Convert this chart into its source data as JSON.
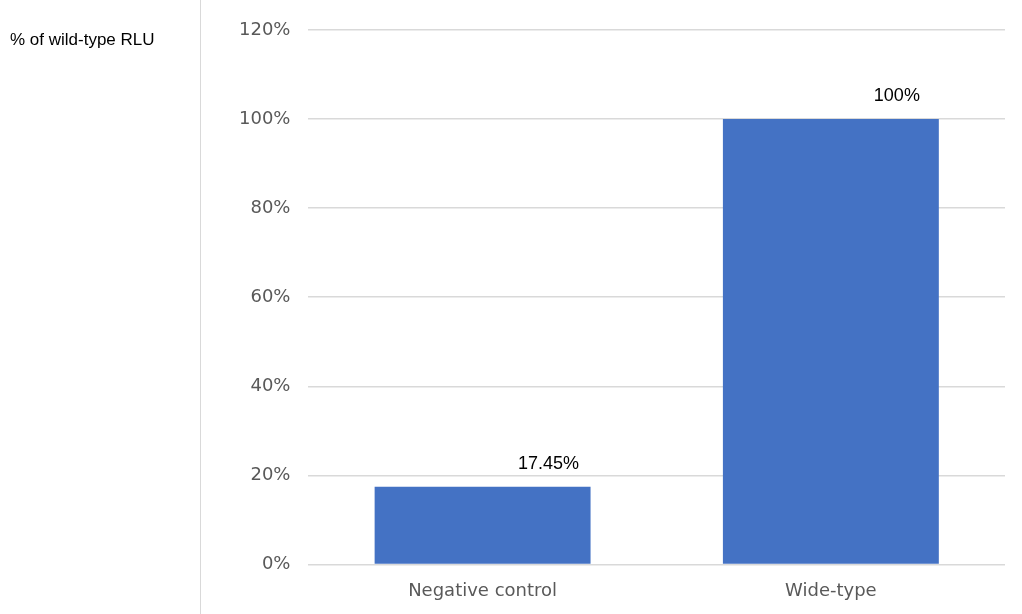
{
  "chart_data": {
    "type": "bar",
    "ylabel": "% of wild-type RLU",
    "categories": [
      "Negative control",
      "Wide-type"
    ],
    "values": [
      17.45,
      100
    ],
    "value_labels": [
      "17.45%",
      "100%"
    ],
    "color": "#4472c4",
    "ylim": [
      0,
      120
    ],
    "yticks": [
      {
        "value": 0,
        "label": "0%"
      },
      {
        "value": 20,
        "label": "20%"
      },
      {
        "value": 40,
        "label": "40%"
      },
      {
        "value": 60,
        "label": "60%"
      },
      {
        "value": 80,
        "label": "80%"
      },
      {
        "value": 100,
        "label": "100%"
      },
      {
        "value": 120,
        "label": "120%"
      }
    ],
    "grid": "y",
    "legend": false
  }
}
